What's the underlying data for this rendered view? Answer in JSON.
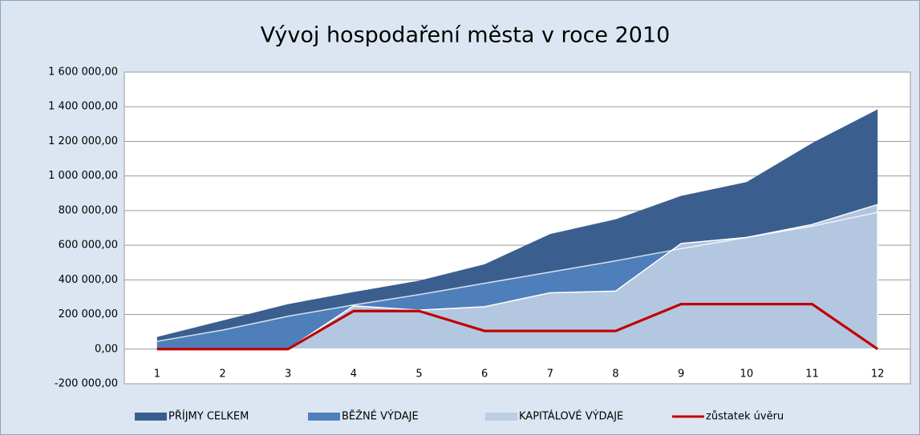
{
  "chart_data": {
    "type": "area",
    "title": "Vývoj hospodaření města v roce 2010",
    "categories": [
      "1",
      "2",
      "3",
      "4",
      "5",
      "6",
      "7",
      "8",
      "9",
      "10",
      "11",
      "12"
    ],
    "series": [
      {
        "name": "PŘÍJMY CELKEM",
        "color": "#3a5f8f",
        "kind": "area",
        "values": [
          70000,
          165000,
          260000,
          330000,
          395000,
          490000,
          665000,
          750000,
          885000,
          965000,
          1190000,
          1385000
        ]
      },
      {
        "name": "BĚŽNÉ VÝDAJE",
        "color": "#4f7fbb",
        "kind": "area",
        "values": [
          45000,
          110000,
          190000,
          255000,
          315000,
          380000,
          445000,
          510000,
          580000,
          645000,
          710000,
          790000
        ]
      },
      {
        "name": "KAPITÁLOVÉ VÝDAJE",
        "color": "#bccde4",
        "kind": "area",
        "values": [
          0,
          0,
          0,
          250000,
          225000,
          245000,
          325000,
          335000,
          610000,
          645000,
          720000,
          835000
        ]
      },
      {
        "name": "zůstatek úvěru",
        "color": "#c00000",
        "kind": "line",
        "values": [
          0,
          0,
          0,
          220000,
          220000,
          105000,
          105000,
          105000,
          260000,
          260000,
          260000,
          0
        ]
      }
    ],
    "ylim": [
      -200000,
      1600000
    ],
    "yticks": [
      {
        "value": -200000,
        "label": "-200 000,00"
      },
      {
        "value": 0,
        "label": "0,00"
      },
      {
        "value": 200000,
        "label": "200 000,00"
      },
      {
        "value": 400000,
        "label": "400 000,00"
      },
      {
        "value": 600000,
        "label": "600 000,00"
      },
      {
        "value": 800000,
        "label": "800 000,00"
      },
      {
        "value": 1000000,
        "label": "1 000 000,00"
      },
      {
        "value": 1200000,
        "label": "1 200 000,00"
      },
      {
        "value": 1400000,
        "label": "1 400 000,00"
      },
      {
        "value": 1600000,
        "label": "1 600 000,00"
      }
    ],
    "grid": true,
    "legend": "bottom"
  }
}
